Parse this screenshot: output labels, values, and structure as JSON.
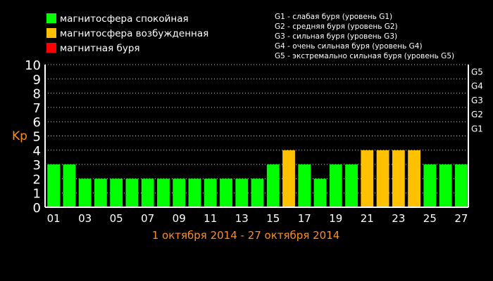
{
  "legend": {
    "items": [
      {
        "label": "магнитосфера спокойная",
        "color": "#00ff00"
      },
      {
        "label": "магнитосфера возбужденная",
        "color": "#ffc000"
      },
      {
        "label": "магнитная буря",
        "color": "#ff0000"
      }
    ],
    "storm_levels": [
      "G1 - слабая буря (уровень G1)",
      "G2 - средняя буря (уровень G2)",
      "G3 - сильная буря (уровень G3)",
      "G4 - очень сильная буря (уровень G4)",
      "G5 - экстремально сильная буря (уровень G5)"
    ]
  },
  "chart_data": {
    "type": "bar",
    "ylabel": "Kp",
    "xlabel": "1 октября 2014 - 27 октября 2014",
    "ylim": [
      0,
      10
    ],
    "yticks": [
      "0",
      "1",
      "2",
      "3",
      "4",
      "5",
      "6",
      "7",
      "8",
      "9",
      "10"
    ],
    "right_ticks": [
      {
        "label": "G1",
        "value": 5
      },
      {
        "label": "G2",
        "value": 6
      },
      {
        "label": "G3",
        "value": 7
      },
      {
        "label": "G4",
        "value": 8
      },
      {
        "label": "G5",
        "value": 9
      }
    ],
    "categories": [
      "01",
      "02",
      "03",
      "04",
      "05",
      "06",
      "07",
      "08",
      "09",
      "10",
      "11",
      "12",
      "13",
      "14",
      "15",
      "16",
      "17",
      "18",
      "19",
      "20",
      "21",
      "22",
      "23",
      "24",
      "25",
      "26",
      "27"
    ],
    "x_tick_labels": [
      "01",
      "03",
      "05",
      "07",
      "09",
      "11",
      "13",
      "15",
      "17",
      "19",
      "21",
      "23",
      "25",
      "27"
    ],
    "values": [
      3,
      3,
      2,
      2,
      2,
      2,
      2,
      2,
      2,
      2,
      2,
      2,
      2,
      2,
      3,
      4,
      3,
      2,
      3,
      3,
      4,
      4,
      4,
      4,
      3,
      3,
      3
    ],
    "grid": true,
    "colors": {
      "quiet": "#00ff00",
      "excited": "#ffc000",
      "storm": "#ff0000",
      "axis_label": "#ff8c1a",
      "grid": "#cccccc"
    }
  }
}
